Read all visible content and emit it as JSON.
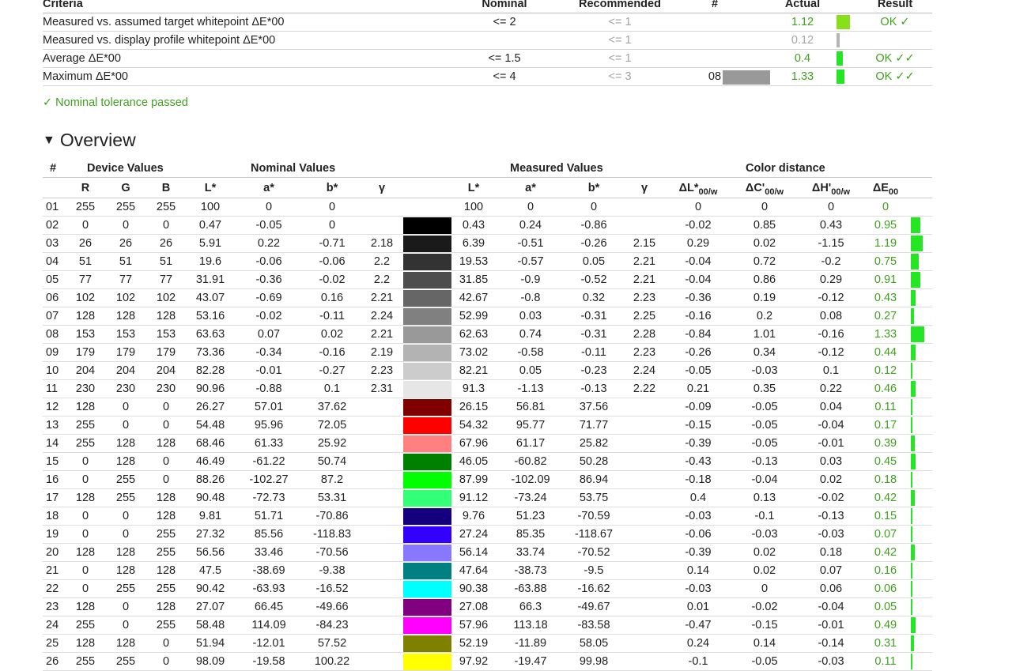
{
  "criteria": {
    "headers": {
      "name": "Criteria",
      "nominal": "Nominal",
      "recommended": "Recommended",
      "num": "#",
      "actual": "Actual",
      "result": "Result"
    },
    "rows": [
      {
        "name": "Measured vs. assumed target whitepoint ΔE*00",
        "nominal": "<= 2",
        "recommended": "<= 1",
        "num": "",
        "actual": "1.12",
        "result": "OK ✓",
        "bar_fraction": 0.56,
        "bar_color": "#88e01a",
        "actual_muted": false
      },
      {
        "name": "Measured vs. display profile whitepoint ΔE*00",
        "nominal": "",
        "recommended": "<= 1",
        "num": "",
        "actual": "0.12",
        "result": "",
        "bar_fraction": 0.12,
        "bar_color": "#b5b5b5",
        "actual_muted": true
      },
      {
        "name": "Average ΔE*00",
        "nominal": "<= 1.5",
        "recommended": "<= 1",
        "num": "",
        "actual": "0.4",
        "result": "OK ✓✓",
        "bar_fraction": 0.27,
        "bar_color": "#25e625",
        "actual_muted": false
      },
      {
        "name": "Maximum ΔE*00",
        "nominal": "<= 4",
        "recommended": "<= 3",
        "num": "08",
        "actual": "1.33",
        "result": "OK ✓✓",
        "bar_fraction": 0.33,
        "bar_color": "#25e625",
        "actual_muted": false,
        "swatch": "#999999"
      }
    ]
  },
  "summary": "✓ Nominal tolerance passed",
  "overview": {
    "title": "Overview",
    "toggle_icon": "▼",
    "groups": {
      "num": "#",
      "device": "Device Values",
      "nominal": "Nominal Values",
      "measured": "Measured Values",
      "distance": "Color distance"
    },
    "subheaders": {
      "R": "R",
      "G": "G",
      "B": "B",
      "L": "L*",
      "a": "a*",
      "b": "b*",
      "gamma": "γ",
      "mL": "L*",
      "ma": "a*",
      "mb": "b*",
      "mgamma": "γ",
      "dL": "ΔL*",
      "dC": "ΔC'",
      "dH": "ΔH'",
      "dE": "ΔE",
      "sub_w": "00/w",
      "sub_00": "00"
    },
    "rows": [
      {
        "num": "01",
        "R": "255",
        "G": "255",
        "B": "255",
        "L": "100",
        "a": "0",
        "b": "0",
        "g": "",
        "color": "#ffffff",
        "mL": "100",
        "ma": "0",
        "mb": "0",
        "mg": "",
        "dL": "0",
        "dC": "0",
        "dH": "0",
        "dE": "0",
        "de_val": 0
      },
      {
        "num": "02",
        "R": "0",
        "G": "0",
        "B": "0",
        "L": "0.47",
        "a": "-0.05",
        "b": "0",
        "g": "",
        "color": "#000000",
        "mL": "0.43",
        "ma": "0.24",
        "mb": "-0.86",
        "mg": "",
        "dL": "-0.02",
        "dC": "0.85",
        "dH": "0.43",
        "dE": "0.95",
        "de_val": 0.95
      },
      {
        "num": "03",
        "R": "26",
        "G": "26",
        "B": "26",
        "L": "5.91",
        "a": "0.22",
        "b": "-0.71",
        "g": "2.18",
        "color": "#1a1a1a",
        "mL": "6.39",
        "ma": "-0.51",
        "mb": "-0.26",
        "mg": "2.15",
        "dL": "0.29",
        "dC": "0.02",
        "dH": "-1.15",
        "dE": "1.19",
        "de_val": 1.19
      },
      {
        "num": "04",
        "R": "51",
        "G": "51",
        "B": "51",
        "L": "19.6",
        "a": "-0.06",
        "b": "-0.06",
        "g": "2.2",
        "color": "#333333",
        "mL": "19.53",
        "ma": "-0.57",
        "mb": "0.05",
        "mg": "2.21",
        "dL": "-0.04",
        "dC": "0.72",
        "dH": "-0.2",
        "dE": "0.75",
        "de_val": 0.75
      },
      {
        "num": "05",
        "R": "77",
        "G": "77",
        "B": "77",
        "L": "31.91",
        "a": "-0.36",
        "b": "-0.02",
        "g": "2.2",
        "color": "#4d4d4d",
        "mL": "31.85",
        "ma": "-0.9",
        "mb": "-0.52",
        "mg": "2.21",
        "dL": "-0.04",
        "dC": "0.86",
        "dH": "0.29",
        "dE": "0.91",
        "de_val": 0.91
      },
      {
        "num": "06",
        "R": "102",
        "G": "102",
        "B": "102",
        "L": "43.07",
        "a": "-0.69",
        "b": "0.16",
        "g": "2.21",
        "color": "#666666",
        "mL": "42.67",
        "ma": "-0.8",
        "mb": "0.32",
        "mg": "2.23",
        "dL": "-0.36",
        "dC": "0.19",
        "dH": "-0.12",
        "dE": "0.43",
        "de_val": 0.43
      },
      {
        "num": "07",
        "R": "128",
        "G": "128",
        "B": "128",
        "L": "53.16",
        "a": "-0.02",
        "b": "-0.11",
        "g": "2.24",
        "color": "#808080",
        "mL": "52.99",
        "ma": "0.03",
        "mb": "-0.31",
        "mg": "2.25",
        "dL": "-0.16",
        "dC": "0.2",
        "dH": "0.08",
        "dE": "0.27",
        "de_val": 0.27
      },
      {
        "num": "08",
        "R": "153",
        "G": "153",
        "B": "153",
        "L": "63.63",
        "a": "0.07",
        "b": "0.02",
        "g": "2.21",
        "color": "#999999",
        "mL": "62.63",
        "ma": "0.74",
        "mb": "-0.31",
        "mg": "2.28",
        "dL": "-0.84",
        "dC": "1.01",
        "dH": "-0.16",
        "dE": "1.33",
        "de_val": 1.33
      },
      {
        "num": "09",
        "R": "179",
        "G": "179",
        "B": "179",
        "L": "73.36",
        "a": "-0.34",
        "b": "-0.16",
        "g": "2.19",
        "color": "#b3b3b3",
        "mL": "73.02",
        "ma": "-0.58",
        "mb": "-0.11",
        "mg": "2.23",
        "dL": "-0.26",
        "dC": "0.34",
        "dH": "-0.12",
        "dE": "0.44",
        "de_val": 0.44
      },
      {
        "num": "10",
        "R": "204",
        "G": "204",
        "B": "204",
        "L": "82.28",
        "a": "-0.01",
        "b": "-0.27",
        "g": "2.23",
        "color": "#cccccc",
        "mL": "82.21",
        "ma": "0.05",
        "mb": "-0.23",
        "mg": "2.24",
        "dL": "-0.05",
        "dC": "-0.03",
        "dH": "0.1",
        "dE": "0.12",
        "de_val": 0.12
      },
      {
        "num": "11",
        "R": "230",
        "G": "230",
        "B": "230",
        "L": "90.96",
        "a": "-0.88",
        "b": "0.1",
        "g": "2.31",
        "color": "#e6e6e6",
        "mL": "91.3",
        "ma": "-1.13",
        "mb": "-0.13",
        "mg": "2.22",
        "dL": "0.21",
        "dC": "0.35",
        "dH": "0.22",
        "dE": "0.46",
        "de_val": 0.46
      },
      {
        "num": "12",
        "R": "128",
        "G": "0",
        "B": "0",
        "L": "26.27",
        "a": "57.01",
        "b": "37.62",
        "g": "",
        "color": "#800000",
        "mL": "26.15",
        "ma": "56.81",
        "mb": "37.56",
        "mg": "",
        "dL": "-0.09",
        "dC": "-0.05",
        "dH": "0.04",
        "dE": "0.11",
        "de_val": 0.11
      },
      {
        "num": "13",
        "R": "255",
        "G": "0",
        "B": "0",
        "L": "54.48",
        "a": "95.96",
        "b": "72.05",
        "g": "",
        "color": "#ff0000",
        "mL": "54.32",
        "ma": "95.77",
        "mb": "71.77",
        "mg": "",
        "dL": "-0.15",
        "dC": "-0.05",
        "dH": "-0.04",
        "dE": "0.17",
        "de_val": 0.17
      },
      {
        "num": "14",
        "R": "255",
        "G": "128",
        "B": "128",
        "L": "68.46",
        "a": "61.33",
        "b": "25.92",
        "g": "",
        "color": "#ff8080",
        "mL": "67.96",
        "ma": "61.17",
        "mb": "25.82",
        "mg": "",
        "dL": "-0.39",
        "dC": "-0.05",
        "dH": "-0.01",
        "dE": "0.39",
        "de_val": 0.39
      },
      {
        "num": "15",
        "R": "0",
        "G": "128",
        "B": "0",
        "L": "46.49",
        "a": "-61.22",
        "b": "50.74",
        "g": "",
        "color": "#008000",
        "mL": "46.05",
        "ma": "-60.82",
        "mb": "50.28",
        "mg": "",
        "dL": "-0.43",
        "dC": "-0.13",
        "dH": "0.03",
        "dE": "0.45",
        "de_val": 0.45
      },
      {
        "num": "16",
        "R": "0",
        "G": "255",
        "B": "0",
        "L": "88.26",
        "a": "-102.27",
        "b": "87.2",
        "g": "",
        "color": "#00ff00",
        "mL": "87.99",
        "ma": "-102.09",
        "mb": "86.94",
        "mg": "",
        "dL": "-0.18",
        "dC": "-0.04",
        "dH": "0.02",
        "dE": "0.18",
        "de_val": 0.18
      },
      {
        "num": "17",
        "R": "128",
        "G": "255",
        "B": "128",
        "L": "90.48",
        "a": "-72.73",
        "b": "53.31",
        "g": "",
        "color": "#33ff77",
        "mL": "91.12",
        "ma": "-73.24",
        "mb": "53.75",
        "mg": "",
        "dL": "0.4",
        "dC": "0.13",
        "dH": "-0.02",
        "dE": "0.42",
        "de_val": 0.42
      },
      {
        "num": "18",
        "R": "0",
        "G": "0",
        "B": "128",
        "L": "9.81",
        "a": "51.71",
        "b": "-70.86",
        "g": "",
        "color": "#14007f",
        "mL": "9.76",
        "ma": "51.23",
        "mb": "-70.59",
        "mg": "",
        "dL": "-0.03",
        "dC": "-0.1",
        "dH": "-0.13",
        "dE": "0.15",
        "de_val": 0.15
      },
      {
        "num": "19",
        "R": "0",
        "G": "0",
        "B": "255",
        "L": "27.32",
        "a": "85.56",
        "b": "-118.83",
        "g": "",
        "color": "#3300ff",
        "mL": "27.24",
        "ma": "85.35",
        "mb": "-118.67",
        "mg": "",
        "dL": "-0.06",
        "dC": "-0.03",
        "dH": "-0.03",
        "dE": "0.07",
        "de_val": 0.07
      },
      {
        "num": "20",
        "R": "128",
        "G": "128",
        "B": "255",
        "L": "56.56",
        "a": "33.46",
        "b": "-70.56",
        "g": "",
        "color": "#8877ff",
        "mL": "56.14",
        "ma": "33.74",
        "mb": "-70.52",
        "mg": "",
        "dL": "-0.39",
        "dC": "0.02",
        "dH": "0.18",
        "dE": "0.42",
        "de_val": 0.42
      },
      {
        "num": "21",
        "R": "0",
        "G": "128",
        "B": "128",
        "L": "47.5",
        "a": "-38.69",
        "b": "-9.38",
        "g": "",
        "color": "#008080",
        "mL": "47.64",
        "ma": "-38.73",
        "mb": "-9.5",
        "mg": "",
        "dL": "0.14",
        "dC": "0.02",
        "dH": "0.07",
        "dE": "0.16",
        "de_val": 0.16
      },
      {
        "num": "22",
        "R": "0",
        "G": "255",
        "B": "255",
        "L": "90.42",
        "a": "-63.93",
        "b": "-16.52",
        "g": "",
        "color": "#00ffff",
        "mL": "90.38",
        "ma": "-63.88",
        "mb": "-16.62",
        "mg": "",
        "dL": "-0.03",
        "dC": "0",
        "dH": "0.06",
        "dE": "0.06",
        "de_val": 0.06
      },
      {
        "num": "23",
        "R": "128",
        "G": "0",
        "B": "128",
        "L": "27.07",
        "a": "66.45",
        "b": "-49.66",
        "g": "",
        "color": "#800080",
        "mL": "27.08",
        "ma": "66.3",
        "mb": "-49.67",
        "mg": "",
        "dL": "0.01",
        "dC": "-0.02",
        "dH": "-0.04",
        "dE": "0.05",
        "de_val": 0.05
      },
      {
        "num": "24",
        "R": "255",
        "G": "0",
        "B": "255",
        "L": "58.48",
        "a": "114.09",
        "b": "-84.23",
        "g": "",
        "color": "#ff00ff",
        "mL": "57.96",
        "ma": "113.18",
        "mb": "-83.58",
        "mg": "",
        "dL": "-0.47",
        "dC": "-0.15",
        "dH": "-0.01",
        "dE": "0.49",
        "de_val": 0.49
      },
      {
        "num": "25",
        "R": "128",
        "G": "128",
        "B": "0",
        "L": "51.94",
        "a": "-12.01",
        "b": "57.52",
        "g": "",
        "color": "#808000",
        "mL": "52.19",
        "ma": "-11.89",
        "mb": "58.05",
        "mg": "",
        "dL": "0.24",
        "dC": "0.14",
        "dH": "-0.14",
        "dE": "0.31",
        "de_val": 0.31
      },
      {
        "num": "26",
        "R": "255",
        "G": "255",
        "B": "0",
        "L": "98.09",
        "a": "-19.58",
        "b": "100.22",
        "g": "",
        "color": "#ffff00",
        "mL": "97.92",
        "ma": "-19.47",
        "mb": "99.98",
        "mg": "",
        "dL": "-0.1",
        "dC": "-0.05",
        "dH": "-0.03",
        "dE": "0.11",
        "de_val": 0.11
      }
    ]
  }
}
